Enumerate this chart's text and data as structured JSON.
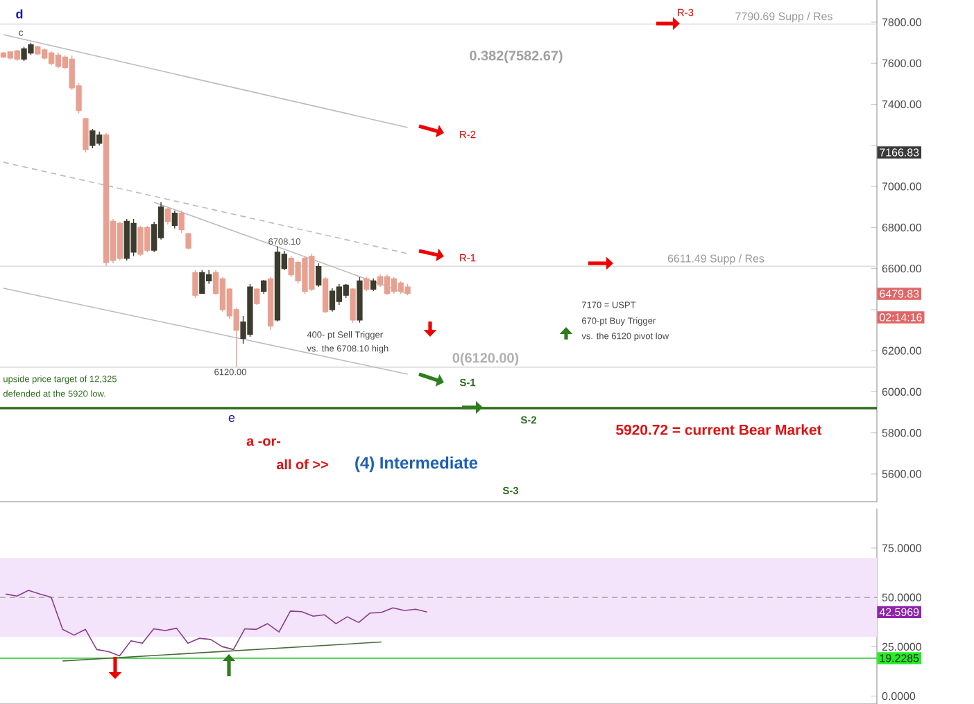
{
  "chart_data": [
    {
      "type": "candlestick",
      "categories": [
        null,
        null,
        null,
        null,
        null,
        null,
        null,
        null,
        null,
        null,
        null,
        null,
        null,
        null,
        null,
        null,
        null,
        null,
        null,
        null,
        null,
        null,
        null,
        null,
        null,
        null,
        null,
        null,
        null,
        null,
        null,
        null,
        null,
        null,
        null,
        null,
        null,
        null,
        null,
        null,
        null,
        null,
        null,
        null,
        null,
        null,
        null,
        null,
        null,
        null,
        null,
        null,
        null,
        null,
        null,
        null,
        null,
        null,
        null,
        null,
        null,
        null,
        null,
        null,
        null,
        null,
        null,
        null,
        null,
        null,
        null,
        null,
        null,
        null,
        null,
        null,
        null,
        null,
        null,
        null,
        null,
        null,
        null,
        null,
        null,
        null,
        null,
        null,
        null,
        null,
        null,
        null,
        null,
        null,
        null,
        null,
        null,
        null,
        null,
        null,
        null,
        null,
        null,
        null,
        null,
        null,
        null,
        null,
        null,
        null,
        null,
        null,
        null,
        null,
        null,
        null,
        null,
        null,
        null,
        null,
        null,
        null,
        null,
        null,
        null,
        null,
        null,
        null
      ],
      "ohlc": [
        [
          7650,
          7655,
          7625,
          7630
        ],
        [
          7655,
          7660,
          7618,
          7625
        ],
        [
          7660,
          7665,
          7611,
          7620
        ],
        [
          7620,
          7680,
          7610,
          7670
        ],
        [
          7650,
          7700,
          7640,
          7690
        ],
        [
          7680,
          7685,
          7640,
          7645
        ],
        [
          7665,
          7672,
          7618,
          7625
        ],
        [
          7650,
          7658,
          7591,
          7600
        ],
        [
          7640,
          7652,
          7577,
          7585
        ],
        [
          7630,
          7638,
          7571,
          7580
        ],
        [
          7620,
          7638,
          7469,
          7480
        ],
        [
          7490,
          7503,
          7355,
          7370
        ],
        [
          7330,
          7334,
          7166,
          7180
        ],
        [
          7200,
          7280,
          7186,
          7270
        ],
        [
          7210,
          7267,
          7199,
          7250
        ],
        [
          7250,
          7260,
          6612,
          6630
        ],
        [
          6830,
          6842,
          6626,
          6640
        ],
        [
          6820,
          6828,
          6639,
          6650
        ],
        [
          6650,
          6842,
          6639,
          6830
        ],
        [
          6680,
          6842,
          6660,
          6820
        ],
        [
          6800,
          6808,
          6660,
          6670
        ],
        [
          6800,
          6808,
          6680,
          6690
        ],
        [
          6690,
          6828,
          6680,
          6815
        ],
        [
          6750,
          6923,
          6741,
          6900
        ],
        [
          6890,
          6896,
          6815,
          6830
        ],
        [
          6810,
          6882,
          6795,
          6870
        ],
        [
          6870,
          6882,
          6774,
          6790
        ],
        [
          6770,
          6774,
          6693,
          6700
        ],
        [
          6580,
          6592,
          6457,
          6470
        ],
        [
          6480,
          6592,
          6477,
          6580
        ],
        [
          6540,
          6592,
          6525,
          6570
        ],
        [
          6580,
          6592,
          6471,
          6480
        ],
        [
          6550,
          6558,
          6390,
          6400
        ],
        [
          6500,
          6504,
          6356,
          6370
        ],
        [
          6400,
          6410,
          6120,
          6300
        ],
        [
          6260,
          6369,
          6234,
          6340
        ],
        [
          6280,
          6525,
          6268,
          6510
        ],
        [
          6500,
          6504,
          6423,
          6430
        ],
        [
          6490,
          6545,
          6477,
          6540
        ],
        [
          6550,
          6558,
          6302,
          6320
        ],
        [
          6350,
          6708.1,
          6342,
          6680
        ],
        [
          6600,
          6687,
          6592,
          6670
        ],
        [
          6650,
          6660,
          6558,
          6570
        ],
        [
          6630,
          6639,
          6525,
          6540
        ],
        [
          6650,
          6660,
          6477,
          6490
        ],
        [
          6660,
          6673,
          6491,
          6500
        ],
        [
          6520,
          6626,
          6511,
          6610
        ],
        [
          6550,
          6558,
          6383,
          6390
        ],
        [
          6400,
          6504,
          6390,
          6490
        ],
        [
          6440,
          6525,
          6423,
          6510
        ],
        [
          6470,
          6525,
          6457,
          6520
        ],
        [
          6500,
          6504,
          6336,
          6350
        ],
        [
          6350,
          6558,
          6336,
          6540
        ],
        [
          6550,
          6558,
          6491,
          6500
        ],
        [
          6500,
          6552,
          6491,
          6540
        ],
        [
          6560,
          6572,
          6511,
          6520
        ],
        [
          6560,
          6572,
          6471,
          6480
        ],
        [
          6550,
          6558,
          6477,
          6490
        ],
        [
          6530,
          6538,
          6477,
          6490
        ],
        [
          6510,
          6525,
          6470,
          6479.83
        ],
        null,
        null,
        null,
        null,
        null,
        null,
        null,
        null,
        null,
        null,
        null,
        null,
        null,
        null,
        null,
        null,
        null,
        null,
        null,
        null,
        null,
        null,
        null,
        null,
        null,
        null,
        null,
        null,
        null,
        null,
        null,
        null,
        null,
        null,
        null,
        null,
        null,
        null,
        null,
        null,
        null,
        null,
        null,
        null,
        null,
        null,
        null,
        null,
        null,
        null,
        null,
        null,
        null,
        null,
        null,
        null,
        null,
        null,
        null,
        null,
        null,
        null,
        null,
        null,
        null,
        null,
        null,
        null
      ],
      "colors": [
        "#e8a090",
        "#e8a090",
        "#e8a090",
        "#3b3b2e",
        "#3b3b2e",
        "#e8a090",
        "#e8a090",
        "#e8a090",
        "#e8a090",
        "#e8a090",
        "#e8a090",
        "#e8a090",
        "#e8a090",
        "#3b3b2e",
        "#3b3b2e",
        "#e8a090",
        "#e8a090",
        "#e8a090",
        "#3b3b2e",
        "#3b3b2e",
        "#e8a090",
        "#e8a090",
        "#3b3b2e",
        "#3b3b2e",
        "#e8a090",
        "#3b3b2e",
        "#e8a090",
        "#e8a090",
        "#e8a090",
        "#3b3b2e",
        "#3b3b2e",
        "#e8a090",
        "#e8a090",
        "#e8a090",
        "#e8a090",
        "#3b3b2e",
        "#3b3b2e",
        "#e8a090",
        "#3b3b2e",
        "#e8a090",
        "#3b3b2e",
        "#3b3b2e",
        "#e8a090",
        "#e8a090",
        "#e8a090",
        "#e8a090",
        "#3b3b2e",
        "#e8a090",
        "#3b3b2e",
        "#3b3b2e",
        "#3b3b2e",
        "#e8a090",
        "#3b3b2e",
        "#e8a090",
        "#3b3b2e",
        "#e8a090",
        "#e8a090",
        "#e8a090",
        "#e8a090",
        "#e8a090",
        null,
        null,
        null,
        null,
        null,
        null,
        null,
        null,
        null,
        null,
        null,
        null,
        null,
        null,
        null,
        null,
        null,
        null,
        null,
        null,
        null,
        null,
        null,
        null,
        null,
        null,
        null,
        null,
        null,
        null,
        null,
        null,
        null,
        null,
        null,
        null,
        null,
        null,
        null,
        null,
        null,
        null,
        null,
        null,
        null,
        null,
        null,
        null,
        null,
        null,
        null,
        null,
        null,
        null,
        null,
        null,
        null,
        null,
        null,
        null,
        null,
        null,
        null,
        null,
        null,
        null,
        null,
        null
      ],
      "series": [
        {
          "type": "line",
          "color": "#bbbbbb",
          "values": [
            7739,
            null,
            null,
            null,
            null,
            null,
            null,
            null,
            null,
            null,
            null,
            null,
            null,
            null,
            null,
            null,
            null,
            null,
            null,
            null,
            null,
            null,
            null,
            null,
            null,
            null,
            null,
            null,
            null,
            null,
            null,
            null,
            null,
            null,
            null,
            null,
            null,
            null,
            null,
            null,
            null,
            null,
            null,
            null,
            null,
            null,
            null,
            null,
            null,
            null,
            null,
            null,
            null,
            null,
            null,
            null,
            null,
            null,
            null,
            7287,
            null,
            null,
            null,
            null,
            null,
            null,
            null,
            null,
            null,
            null,
            null,
            null,
            null,
            null,
            null,
            null,
            null,
            null,
            null,
            null,
            null,
            null,
            null,
            null,
            null,
            null,
            null,
            null,
            null,
            null,
            null,
            null,
            null,
            null,
            null,
            null,
            null,
            null,
            null,
            null,
            null,
            null,
            null,
            null,
            null,
            null,
            null,
            null,
            null,
            null,
            null,
            null,
            null,
            null,
            null,
            null,
            null,
            null,
            null,
            null,
            null,
            null,
            null,
            null,
            null,
            null,
            null,
            null
          ]
        },
        {
          "type": "line",
          "color": "#bbbbbb",
          "line_style": "dashed",
          "values": [
            7118,
            null,
            null,
            null,
            null,
            null,
            null,
            null,
            null,
            null,
            null,
            null,
            null,
            null,
            null,
            null,
            null,
            null,
            null,
            null,
            null,
            null,
            null,
            null,
            null,
            null,
            null,
            null,
            null,
            null,
            null,
            null,
            null,
            null,
            null,
            null,
            null,
            null,
            null,
            null,
            null,
            null,
            null,
            null,
            null,
            null,
            null,
            null,
            null,
            null,
            null,
            null,
            null,
            null,
            null,
            null,
            null,
            null,
            null,
            6673,
            null,
            null,
            null,
            null,
            null,
            null,
            null,
            null,
            null,
            null,
            null,
            null,
            null,
            null,
            null,
            null,
            null,
            null,
            null,
            null,
            null,
            null,
            null,
            null,
            null,
            null,
            null,
            null,
            null,
            null,
            null,
            null,
            null,
            null,
            null,
            null,
            null,
            null,
            null,
            null,
            null,
            null,
            null,
            null,
            null,
            null,
            null,
            null,
            null,
            null,
            null,
            null,
            null,
            null,
            null,
            null,
            null,
            null,
            null,
            null,
            null,
            null,
            null,
            null,
            null,
            null,
            null,
            null
          ]
        },
        {
          "type": "line",
          "color": "#bbbbbb",
          "values": [
            6504,
            null,
            null,
            null,
            null,
            null,
            null,
            null,
            null,
            null,
            null,
            null,
            null,
            null,
            null,
            null,
            null,
            null,
            null,
            null,
            null,
            null,
            null,
            null,
            null,
            null,
            null,
            null,
            null,
            null,
            null,
            null,
            null,
            null,
            null,
            null,
            null,
            null,
            null,
            null,
            null,
            null,
            null,
            null,
            null,
            null,
            null,
            null,
            null,
            null,
            null,
            null,
            null,
            null,
            null,
            null,
            null,
            null,
            null,
            6086,
            null,
            null,
            null,
            null,
            null,
            null,
            null,
            null,
            null,
            null,
            null,
            null,
            null,
            null,
            null,
            null,
            null,
            null,
            null,
            null,
            null,
            null,
            null,
            null,
            null,
            null,
            null,
            null,
            null,
            null,
            null,
            null,
            null,
            null,
            null,
            null,
            null,
            null,
            null,
            null,
            null,
            null,
            null,
            null,
            null,
            null,
            null,
            null,
            null,
            null,
            null,
            null,
            null,
            null,
            null,
            null,
            null,
            null,
            null,
            null,
            null,
            null,
            null,
            null,
            null,
            null,
            null,
            null
          ]
        },
        {
          "type": "line",
          "color": "#bbbbbb",
          "values": [
            null,
            null,
            null,
            null,
            null,
            null,
            null,
            null,
            null,
            null,
            null,
            null,
            null,
            null,
            null,
            null,
            null,
            null,
            null,
            null,
            null,
            null,
            6923,
            null,
            null,
            null,
            null,
            null,
            null,
            null,
            null,
            null,
            null,
            null,
            null,
            null,
            null,
            null,
            null,
            null,
            null,
            null,
            null,
            null,
            null,
            null,
            null,
            null,
            null,
            null,
            null,
            null,
            null,
            null,
            null,
            null,
            null,
            null,
            null,
            6477,
            null,
            null,
            null,
            null,
            null,
            null,
            null,
            null,
            null,
            null,
            null,
            null,
            null,
            null,
            null,
            null,
            null,
            null,
            null,
            null,
            null,
            null,
            null,
            null,
            null,
            null,
            null,
            null,
            null,
            null,
            null,
            null,
            null,
            null,
            null,
            null,
            null,
            null,
            null,
            null,
            null,
            null,
            null,
            null,
            null,
            null,
            null,
            null,
            null,
            null,
            null,
            null,
            null,
            null,
            null,
            null,
            null,
            null,
            null,
            null,
            null,
            null,
            null,
            null,
            null,
            null,
            null,
            null
          ]
        }
      ],
      "ylim": [
        5465,
        7908
      ],
      "yticks": [
        {
          "value": 5600,
          "label": "5600.00"
        },
        {
          "value": 5800,
          "label": "5800.00"
        },
        {
          "value": 6000,
          "label": "6000.00"
        },
        {
          "value": 6200,
          "label": "6200.00"
        },
        {
          "value": 6400,
          "label": null
        },
        {
          "value": 6600,
          "label": "6600.00"
        },
        {
          "value": 6800,
          "label": "6800.00"
        },
        {
          "value": 7000,
          "label": "7000.00"
        },
        {
          "value": 7200,
          "label": null
        },
        {
          "value": 7400,
          "label": "7400.00"
        },
        {
          "value": 7600,
          "label": "7600.00"
        },
        {
          "value": 7800,
          "label": "7800.00"
        }
      ],
      "tick_labels": "y",
      "ref_lines": [
        {
          "axis": "y",
          "value": 7790.69,
          "label": "7790.69 Supp / Res",
          "color": "#dddddd"
        },
        {
          "axis": "y",
          "value": 6611.49,
          "label": "6611.49 Supp / Res",
          "color": "#dddddd"
        },
        {
          "axis": "y",
          "value": 6120,
          "label": "0(6120.00)",
          "color": "#dddddd"
        },
        {
          "axis": "y",
          "value": 5920.72,
          "label": null,
          "color": "#2e6b1e"
        }
      ],
      "annotations": [
        "d",
        "c",
        "e",
        "R-3",
        "0.382(7582.67)",
        "R-2",
        {
          "text": "6708.10",
          "y": 6708.1
        },
        "R-1",
        "7170 = USPT",
        "670-pt Buy Trigger",
        "vs. the 6120 pivot low",
        "400- pt Sell Trigger",
        "vs. the 6708.10 high",
        "upside price target of 12,325",
        "defended at the 5920 low.",
        {
          "text": "6120.00",
          "y": 6120
        },
        "S-1",
        "S-2",
        "5920.72 = current Bear Market",
        "a -or-",
        "all of >>",
        "(4) Intermediate",
        "S-3",
        "7166.83",
        "6479.83",
        "02:14:16"
      ]
    },
    {
      "type": "line",
      "categories": [
        null,
        null,
        null,
        null,
        null,
        null,
        null,
        null,
        null,
        null,
        null,
        null,
        null,
        null,
        null,
        null,
        null,
        null,
        null,
        null,
        null,
        null,
        null,
        null,
        null,
        null,
        null,
        null,
        null,
        null,
        null,
        null,
        null,
        null,
        null,
        null,
        null,
        null,
        null,
        null,
        null,
        null,
        null,
        null,
        null,
        null,
        null,
        null,
        null,
        null,
        null,
        null,
        null,
        null,
        null,
        null,
        null,
        null,
        null,
        null,
        null,
        null,
        null,
        null,
        null,
        null,
        null,
        null,
        null,
        null,
        null,
        null,
        null,
        null,
        null,
        null,
        null
      ],
      "series": [
        {
          "color": "#8a3b8a",
          "values": [
            51.7,
            50.7,
            53.6,
            51.7,
            50.1,
            33.8,
            30.9,
            33.8,
            23.6,
            22.6,
            20.4,
            28.0,
            26.8,
            34.1,
            33.2,
            34.4,
            26.8,
            29.3,
            28.7,
            25.1,
            23.6,
            34.1,
            33.8,
            36.7,
            32.5,
            43.1,
            42.8,
            40.5,
            41.2,
            36.7,
            40.2,
            37.3,
            42.1,
            42.4,
            44.7,
            43.4,
            44.0,
            42.5969,
            null,
            null,
            null,
            null,
            null,
            null,
            null,
            null,
            null,
            null,
            null,
            null,
            null,
            null,
            null,
            null,
            null,
            null,
            null,
            null,
            null,
            null,
            null,
            null,
            null,
            null,
            null,
            null,
            null,
            null,
            null,
            null,
            null,
            null,
            null,
            null,
            null,
            null,
            null
          ]
        },
        {
          "color": "#4a6a3a",
          "values": [
            null,
            null,
            null,
            null,
            null,
            17.8,
            null,
            null,
            null,
            null,
            null,
            null,
            null,
            null,
            null,
            null,
            null,
            null,
            null,
            null,
            null,
            null,
            null,
            null,
            null,
            null,
            null,
            null,
            null,
            null,
            null,
            null,
            null,
            27.4,
            null,
            null,
            null,
            null,
            null,
            null,
            null,
            null,
            null,
            null,
            null,
            null,
            null,
            null,
            null,
            null,
            null,
            null,
            null,
            null,
            null,
            null,
            null,
            null,
            null,
            null,
            null,
            null,
            null,
            null,
            null,
            null,
            null,
            null,
            null,
            null,
            null,
            null,
            null,
            null,
            null,
            null,
            null
          ]
        }
      ],
      "ylim": [
        -4,
        95
      ],
      "yticks": [
        {
          "value": 0,
          "label": "0.0000"
        },
        {
          "value": 25,
          "label": "25.0000"
        },
        {
          "value": 50,
          "label": "50.0000"
        },
        {
          "value": 75,
          "label": "75.0000"
        }
      ],
      "tick_labels": "y",
      "bands": [
        {
          "axis": "y",
          "from": 30,
          "to": 70,
          "label": null,
          "color": "#f3e4fc"
        }
      ],
      "ref_lines": [
        {
          "axis": "y",
          "value": 50,
          "label": null,
          "color": "#aaaaaa",
          "line_style": "dashed"
        },
        {
          "axis": "y",
          "value": 19.2285,
          "label": "19.2285",
          "color": "#33cc33"
        }
      ],
      "annotations": [
        "42.5969"
      ]
    }
  ]
}
